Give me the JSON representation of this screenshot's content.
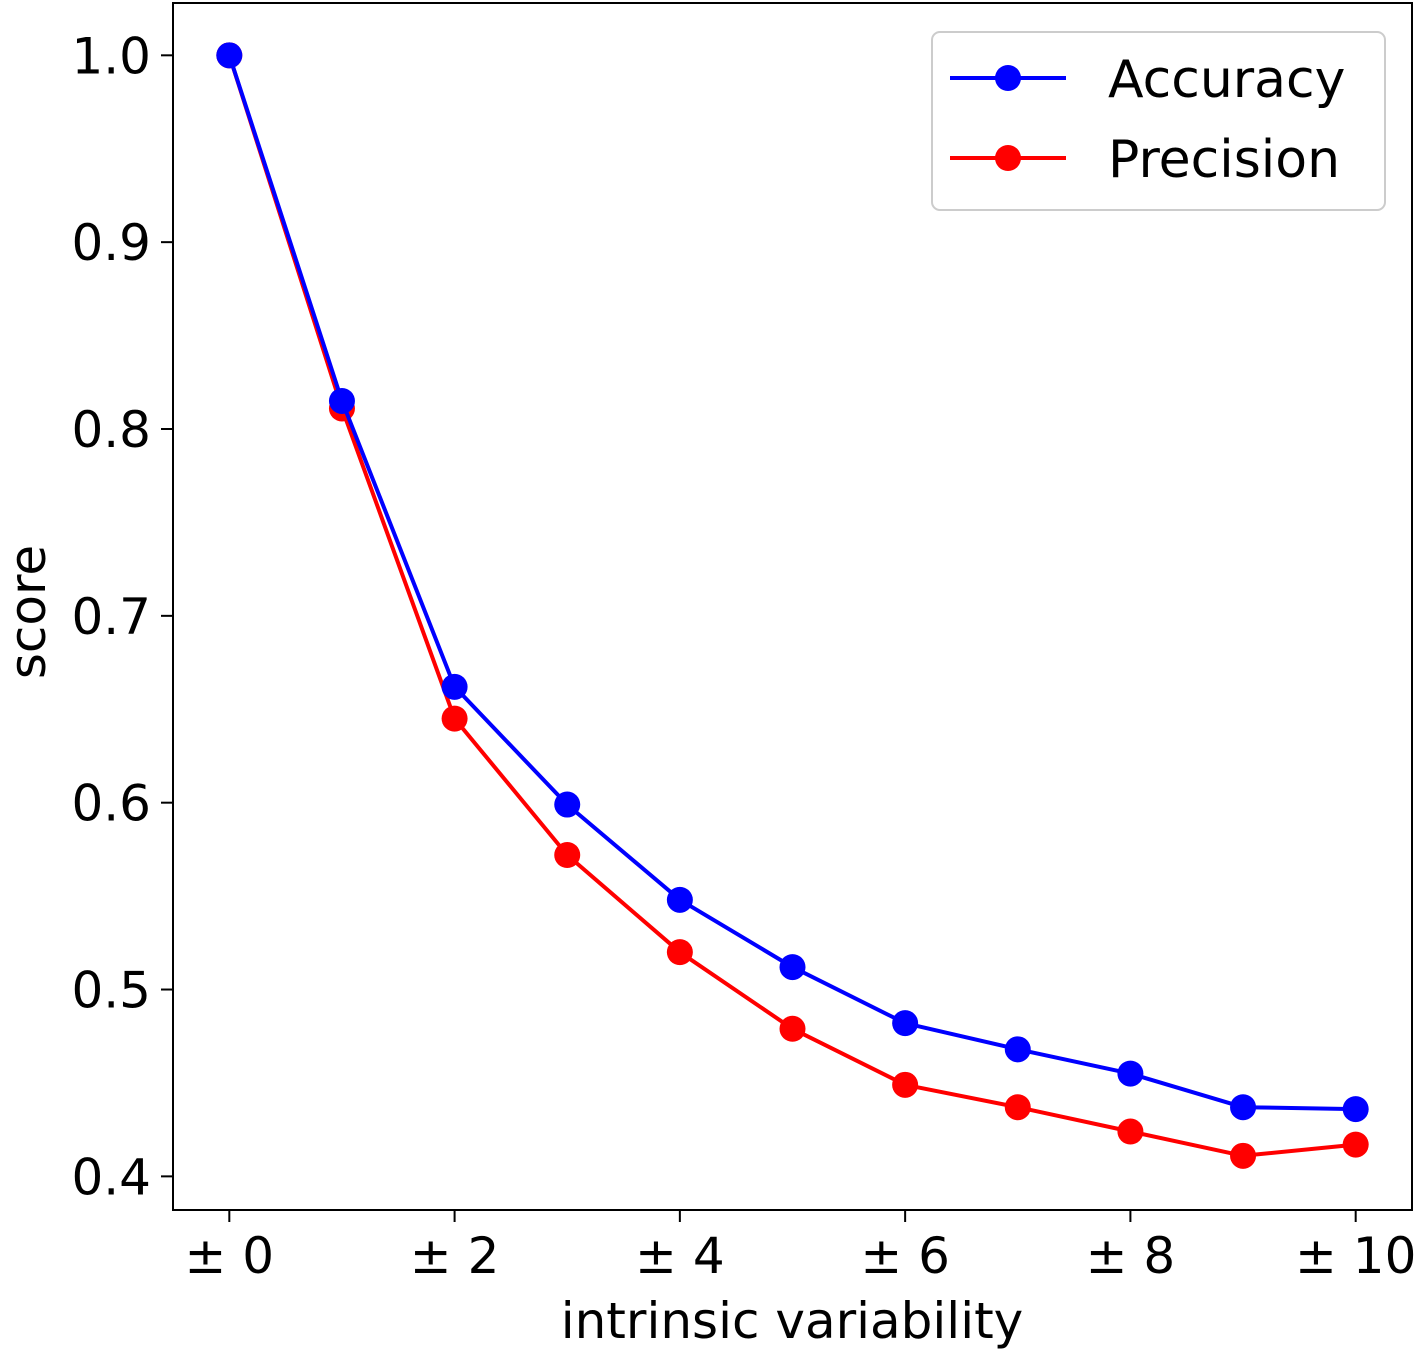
{
  "chart_data": {
    "type": "line",
    "title": "",
    "xlabel": "intrinsic variability",
    "ylabel": "score",
    "x": [
      0,
      1,
      2,
      3,
      4,
      5,
      6,
      7,
      8,
      9,
      10
    ],
    "xlim": [
      -0.5,
      10.5
    ],
    "ylim": [
      0.382,
      1.028
    ],
    "xticks": [
      0,
      2,
      4,
      6,
      8,
      10
    ],
    "xtick_labels": [
      "± 0",
      "± 2",
      "± 4",
      "± 6",
      "± 8",
      "± 10"
    ],
    "yticks": [
      0.4,
      0.5,
      0.6,
      0.7,
      0.8,
      0.9,
      1.0
    ],
    "ytick_labels": [
      "0.4",
      "0.5",
      "0.6",
      "0.7",
      "0.8",
      "0.9",
      "1.0"
    ],
    "grid": false,
    "legend_position": "top-right",
    "series": [
      {
        "name": "Precision",
        "color": "#ff0000",
        "values": [
          1.0,
          0.811,
          0.645,
          0.572,
          0.52,
          0.479,
          0.449,
          0.437,
          0.424,
          0.411,
          0.417
        ]
      },
      {
        "name": "Accuracy",
        "color": "#0000ff",
        "values": [
          1.0,
          0.815,
          0.662,
          0.599,
          0.548,
          0.512,
          0.482,
          0.468,
          0.455,
          0.437,
          0.436
        ]
      }
    ],
    "legend_order": [
      "Accuracy",
      "Precision"
    ]
  }
}
